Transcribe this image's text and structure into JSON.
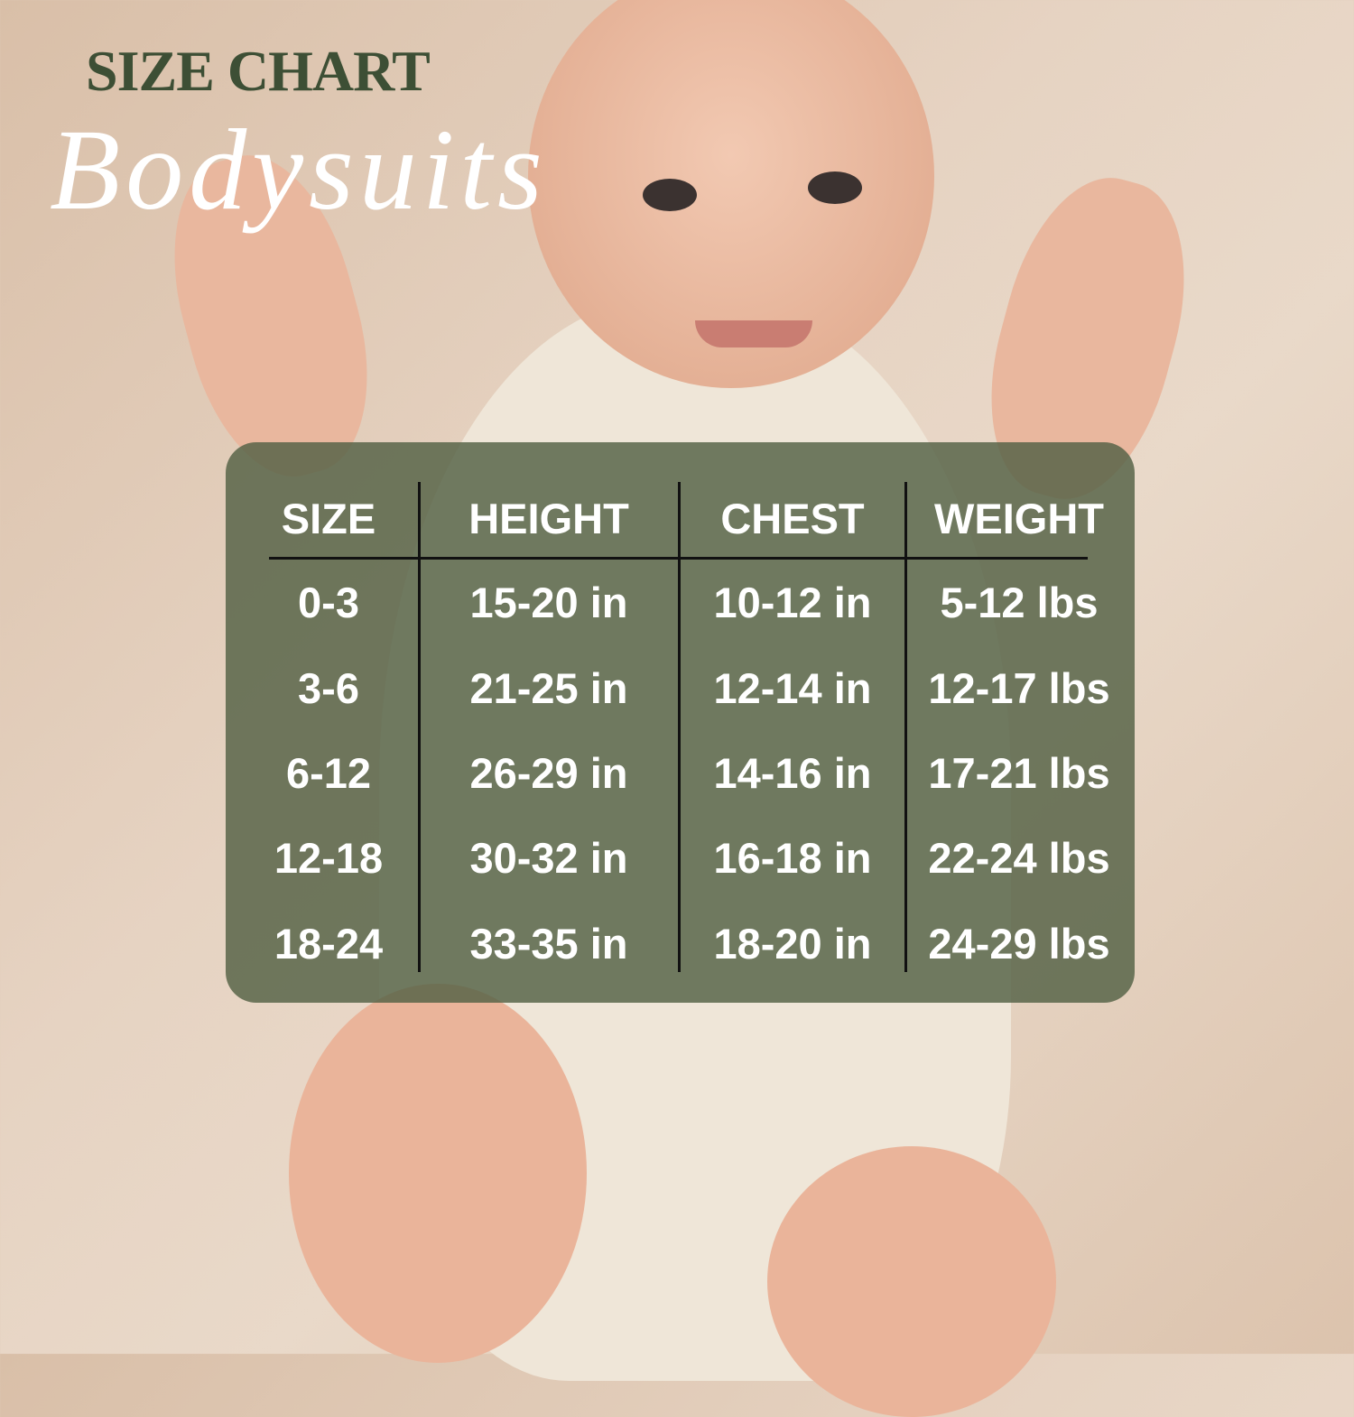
{
  "title": "SIZE CHART",
  "subtitle": "Bodysuits",
  "colors": {
    "title": "#3d4f35",
    "panel": "#536044",
    "text": "#ffffff"
  },
  "table": {
    "headers": [
      "SIZE",
      "HEIGHT",
      "CHEST",
      "WEIGHT"
    ],
    "rows": [
      [
        "0-3",
        "15-20 in",
        "10-12 in",
        "5-12 lbs"
      ],
      [
        "3-6",
        "21-25 in",
        "12-14 in",
        "12-17 lbs"
      ],
      [
        "6-12",
        "26-29 in",
        "14-16 in",
        "17-21 lbs"
      ],
      [
        "12-18",
        "30-32 in",
        "16-18 in",
        "22-24 lbs"
      ],
      [
        "18-24",
        "33-35 in",
        "18-20 in",
        "24-29 lbs"
      ]
    ]
  }
}
